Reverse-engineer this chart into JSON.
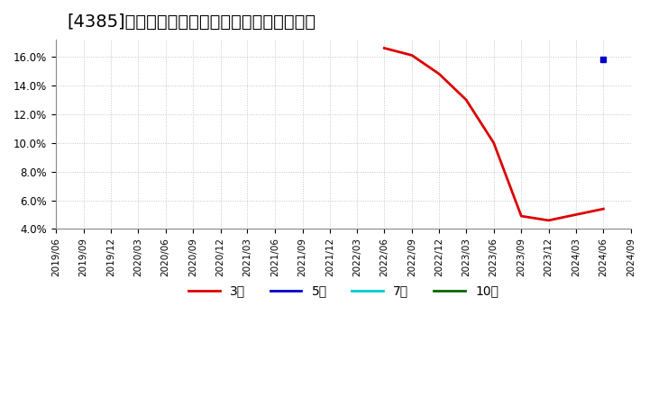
{
  "title": "[4385]　当期純利益マージンの標準偏差の推移",
  "title_fontsize": 14,
  "background_color": "#ffffff",
  "plot_bg_color": "#ffffff",
  "grid_color": "#aaaaaa",
  "ylim": [
    0.04,
    0.172
  ],
  "yticks": [
    0.04,
    0.06,
    0.08,
    0.1,
    0.12,
    0.14,
    0.16
  ],
  "legend_items": [
    {
      "label": "3年",
      "color": "#dd0000",
      "style": "-"
    },
    {
      "label": "5年",
      "color": "#0000cc",
      "style": "-"
    },
    {
      "label": "7年",
      "color": "#00cccc",
      "style": "-"
    },
    {
      "label": "10年",
      "color": "#006600",
      "style": "-"
    }
  ],
  "series_3y": {
    "color": "#dd0000",
    "dates": [
      "2019-06",
      "2019-09",
      "2019-12",
      "2020-03",
      "2020-06",
      "2020-09",
      "2020-12",
      "2021-03",
      "2021-06",
      "2021-09",
      "2021-12",
      "2022-03",
      "2022-06",
      "2022-09",
      "2022-12",
      "2023-03",
      "2023-06",
      "2023-09",
      "2023-12",
      "2024-03",
      "2024-06"
    ],
    "values": [
      null,
      null,
      null,
      null,
      null,
      null,
      null,
      null,
      null,
      null,
      null,
      null,
      0.166,
      0.161,
      0.148,
      0.13,
      0.1,
      0.049,
      0.046,
      0.05,
      0.054
    ]
  },
  "series_5y": {
    "color": "#0000cc",
    "dates": [
      "2024-06"
    ],
    "values": [
      0.158
    ]
  }
}
